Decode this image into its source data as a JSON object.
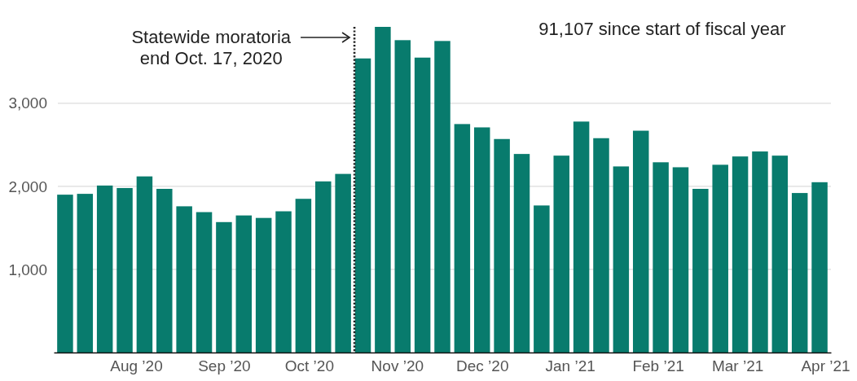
{
  "chart_data": {
    "type": "bar",
    "color": "#087b6d",
    "x": [
      "2020-07-07",
      "2020-07-14",
      "2020-07-21",
      "2020-07-28",
      "2020-08-04",
      "2020-08-11",
      "2020-08-18",
      "2020-08-25",
      "2020-09-01",
      "2020-09-08",
      "2020-09-15",
      "2020-09-22",
      "2020-09-29",
      "2020-10-06",
      "2020-10-13",
      "2020-10-20",
      "2020-10-27",
      "2020-11-03",
      "2020-11-10",
      "2020-11-17",
      "2020-11-24",
      "2020-12-01",
      "2020-12-08",
      "2020-12-15",
      "2020-12-22",
      "2020-12-29",
      "2021-01-05",
      "2021-01-12",
      "2021-01-19",
      "2021-01-26",
      "2021-02-02",
      "2021-02-09",
      "2021-02-16",
      "2021-02-23",
      "2021-03-02",
      "2021-03-09",
      "2021-03-16",
      "2021-03-23",
      "2021-03-30"
    ],
    "values": [
      1900,
      1910,
      2010,
      1980,
      2120,
      1970,
      1760,
      1690,
      1570,
      1650,
      1620,
      1700,
      1850,
      2060,
      2150,
      3540,
      3920,
      3760,
      3550,
      3750,
      2750,
      2710,
      2570,
      2390,
      1770,
      2370,
      2780,
      2580,
      2240,
      2670,
      2290,
      2230,
      1970,
      2260,
      2360,
      2420,
      2370,
      1920,
      2050
    ],
    "xlim": [
      "2020-07-03",
      "2021-04-03"
    ],
    "xticks": [
      {
        "value": "2020-08-01",
        "label": "Aug ’20"
      },
      {
        "value": "2020-09-01",
        "label": "Sep ’20"
      },
      {
        "value": "2020-10-01",
        "label": "Oct ’20"
      },
      {
        "value": "2020-11-01",
        "label": "Nov ’20"
      },
      {
        "value": "2020-12-01",
        "label": "Dec ’20"
      },
      {
        "value": "2021-01-01",
        "label": "Jan ’21"
      },
      {
        "value": "2021-02-01",
        "label": "Feb ’21"
      },
      {
        "value": "2021-03-01",
        "label": "Mar ’21"
      },
      {
        "value": "2021-04-01",
        "label": "Apr ’21"
      }
    ],
    "ylim": [
      0,
      3920
    ],
    "yticks": [
      {
        "value": 1000,
        "label": "1,000"
      },
      {
        "value": 2000,
        "label": "2,000"
      },
      {
        "value": 3000,
        "label": "3,000"
      }
    ],
    "grid": "y",
    "ref_lines": [
      {
        "axis": "x",
        "value": "2020-10-17",
        "label": "Statewide moratoria\nend Oct. 17, 2020",
        "color": "#222222",
        "line_style": "dotted"
      }
    ],
    "annotations": [
      "91,107 since start of fiscal year"
    ]
  }
}
